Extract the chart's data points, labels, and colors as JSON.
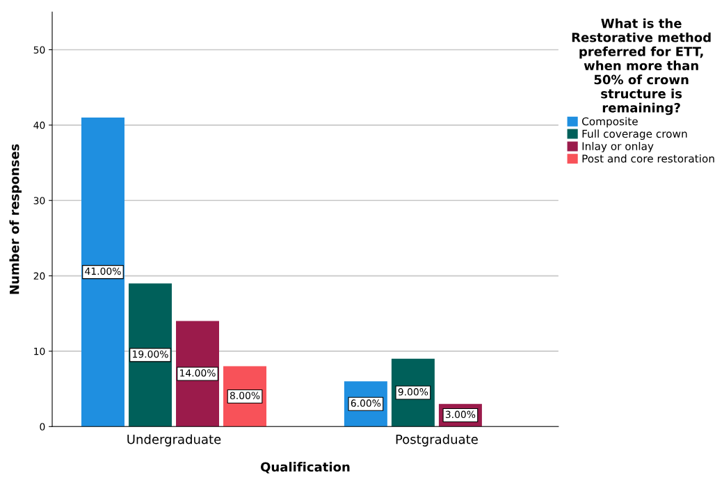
{
  "chart_data": {
    "type": "bar",
    "xlabel": "Qualification",
    "ylabel": "Number of responses",
    "legend_title": "What is the\nRestorative method\npreferred for ETT,\nwhen more than\n50% of crown\nstructure is\nremaining?",
    "categories": [
      "Undergraduate",
      "Postgraduate"
    ],
    "series": [
      {
        "name": "Composite",
        "color": "#1f8fe0",
        "values": [
          41,
          6
        ],
        "value_labels": [
          "41.00%",
          "6.00%"
        ]
      },
      {
        "name": "Full coverage crown",
        "color": "#00605a",
        "values": [
          19,
          9
        ],
        "value_labels": [
          "19.00%",
          "9.00%"
        ]
      },
      {
        "name": "Inlay or onlay",
        "color": "#9b1b4b",
        "values": [
          14,
          3
        ],
        "value_labels": [
          "14.00%",
          "3.00%"
        ]
      },
      {
        "name": "Post and core restoration",
        "color": "#f85259",
        "values": [
          8,
          null
        ],
        "value_labels": [
          "8.00%",
          null
        ]
      }
    ],
    "ylim": [
      0,
      55
    ],
    "yticks": [
      0,
      10,
      20,
      30,
      40,
      50
    ],
    "grid": "y",
    "legend": "right"
  }
}
